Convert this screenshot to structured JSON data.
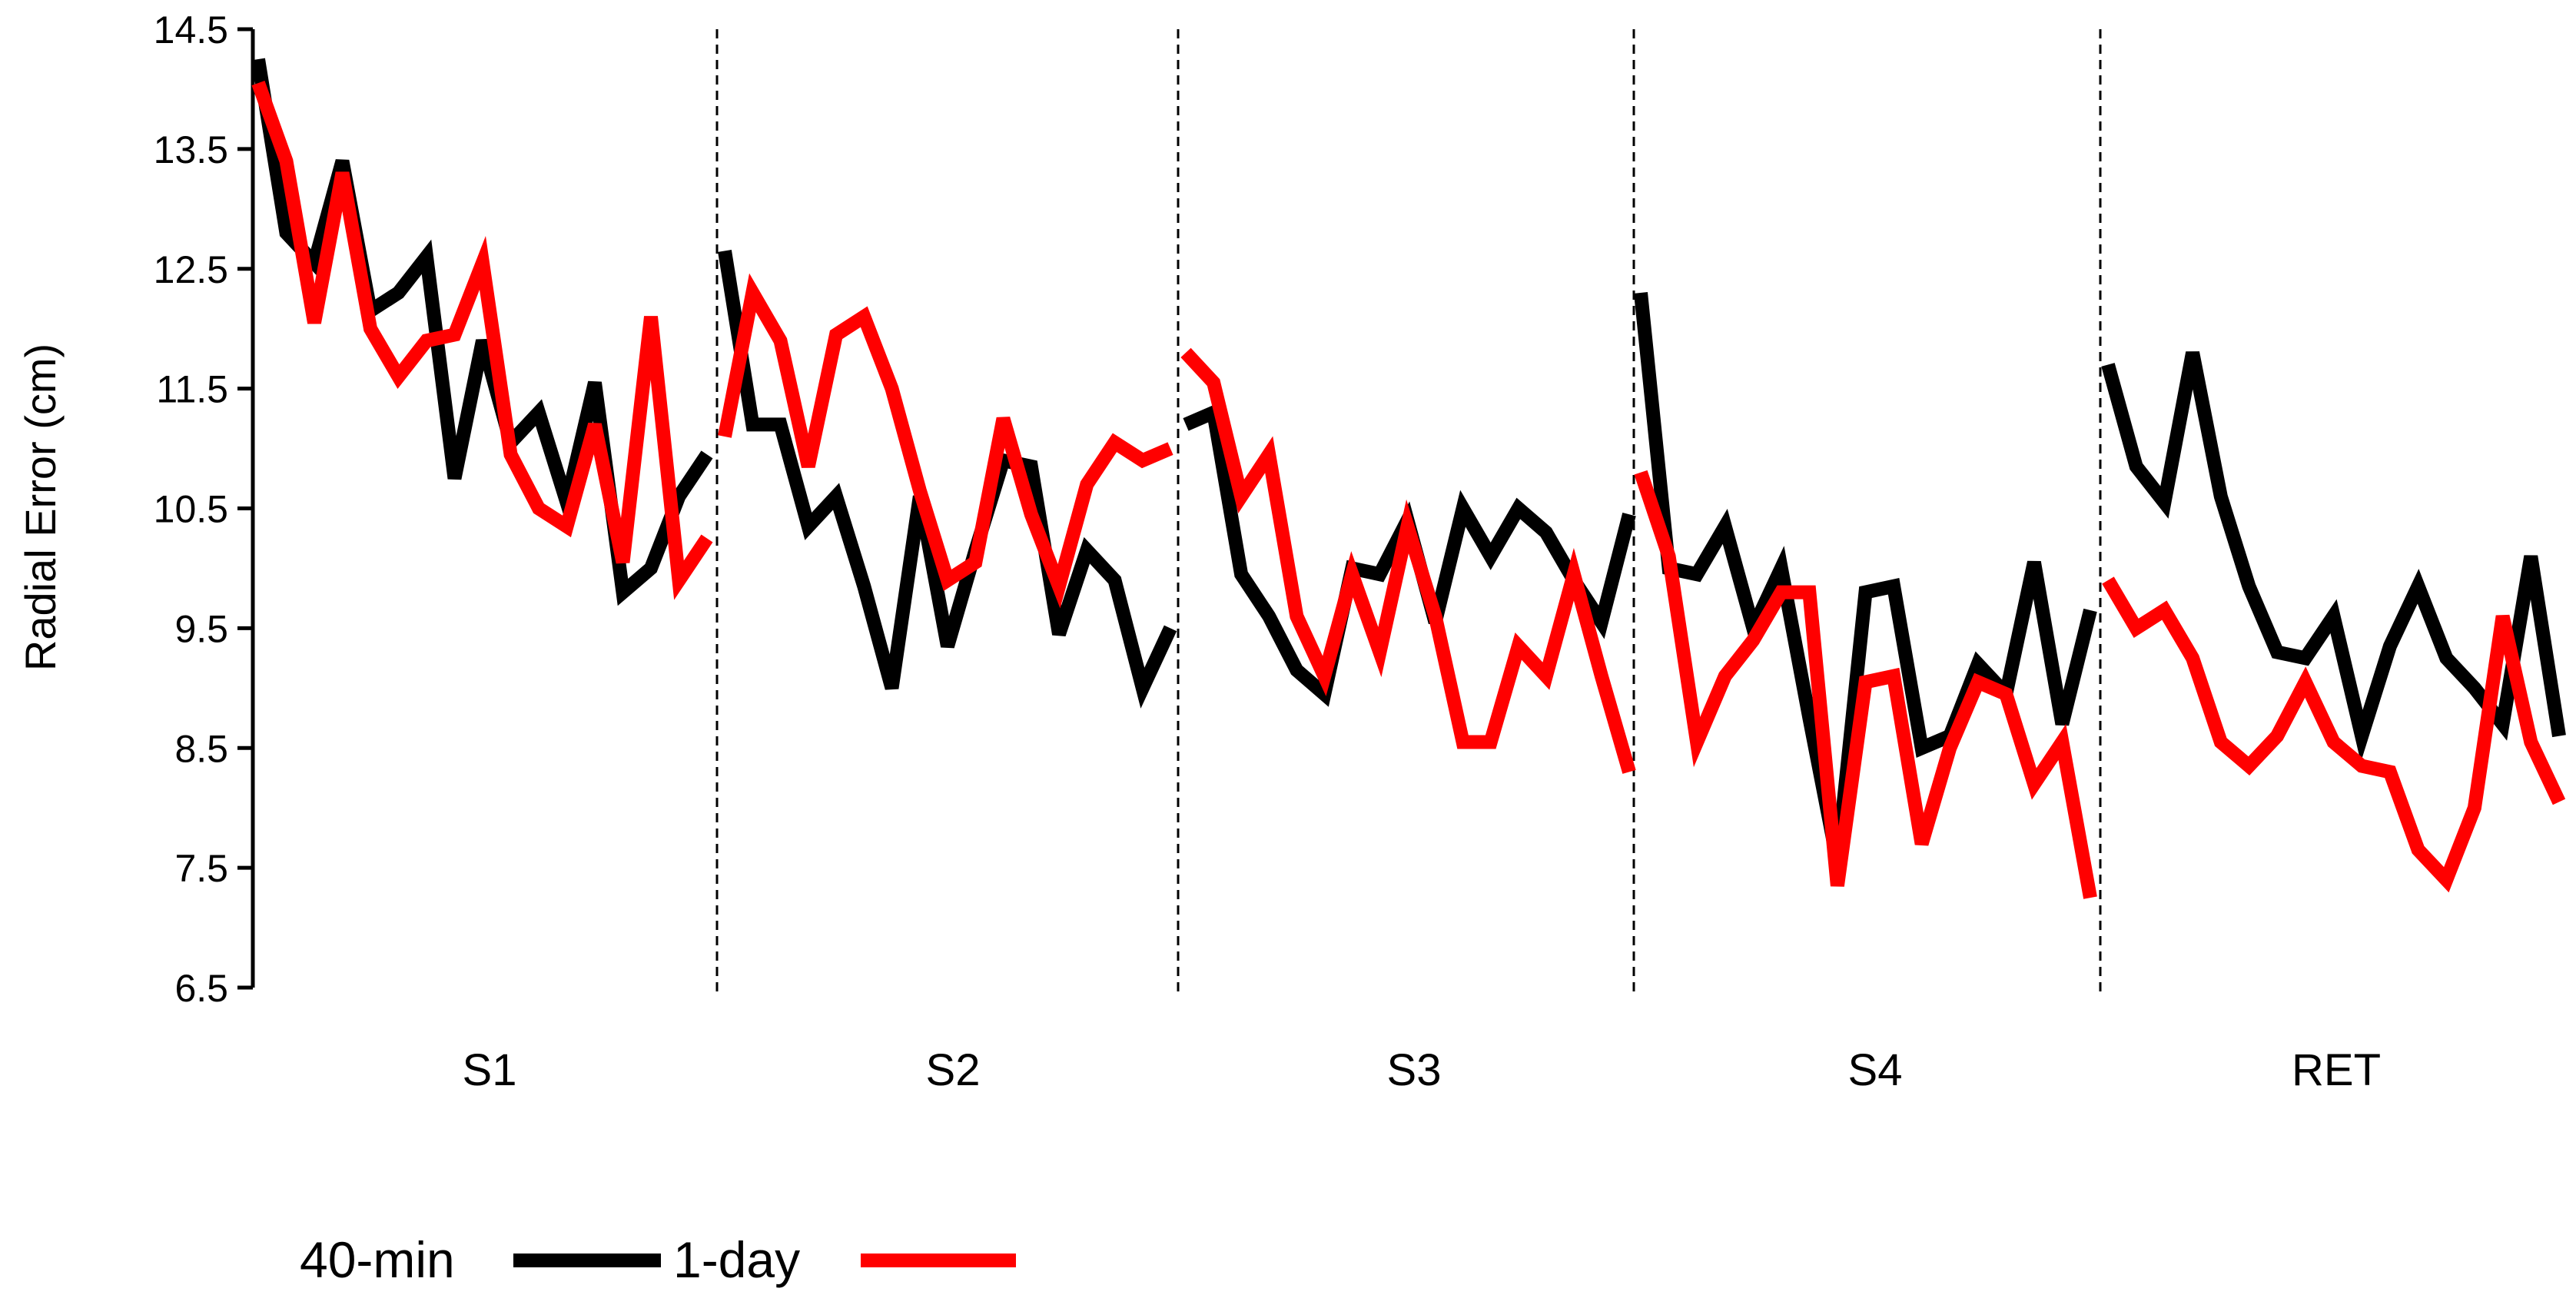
{
  "chart_data": {
    "type": "line",
    "ylabel": "Radial Error (cm)",
    "ylim": [
      6.5,
      14.5
    ],
    "yticks": [
      "14.5",
      "13.5",
      "12.5",
      "11.5",
      "10.5",
      "9.5",
      "8.5",
      "7.5",
      "6.5"
    ],
    "grid": false,
    "legend_position": "bottom-left",
    "sessions": [
      "S1",
      "S2",
      "S3",
      "S4",
      "RET"
    ],
    "series": [
      {
        "name": "40-min",
        "color": "#000000",
        "sessions": [
          [
            14.25,
            12.8,
            12.55,
            13.4,
            12.15,
            12.3,
            12.6,
            10.75,
            11.9,
            11.05,
            11.3,
            10.55,
            11.55,
            9.8,
            10.0,
            10.6,
            10.95
          ],
          [
            12.65,
            11.2,
            11.2,
            10.35,
            10.6,
            9.85,
            9.0,
            10.6,
            9.35,
            10.15,
            10.9,
            10.85,
            9.45,
            10.15,
            9.9,
            9.0,
            9.5
          ],
          [
            11.2,
            11.3,
            9.95,
            9.6,
            9.15,
            8.95,
            10.0,
            9.95,
            10.4,
            9.55,
            10.5,
            10.1,
            10.5,
            10.3,
            9.9,
            9.55,
            10.45
          ],
          [
            12.3,
            10.0,
            9.95,
            10.35,
            9.5,
            10.0,
            8.75,
            7.55,
            9.8,
            9.85,
            8.5,
            8.6,
            9.2,
            8.95,
            10.05,
            8.7,
            9.65
          ],
          [
            11.7,
            10.85,
            10.55,
            11.8,
            10.6,
            9.85,
            9.3,
            9.25,
            9.6,
            8.6,
            9.35,
            9.85,
            9.25,
            9.0,
            8.7,
            10.1,
            8.6
          ]
        ]
      },
      {
        "name": "1-day",
        "color": "#ff0000",
        "sessions": [
          [
            14.05,
            13.4,
            12.05,
            13.3,
            12.0,
            11.6,
            11.9,
            11.95,
            12.55,
            10.95,
            10.5,
            10.35,
            11.2,
            10.05,
            12.1,
            9.9,
            10.25
          ],
          [
            11.1,
            12.3,
            11.9,
            10.85,
            11.95,
            12.1,
            11.5,
            10.65,
            9.9,
            10.05,
            11.25,
            10.45,
            9.85,
            10.7,
            11.05,
            10.9,
            11.0
          ],
          [
            11.8,
            11.55,
            10.6,
            10.95,
            9.6,
            9.1,
            9.95,
            9.3,
            10.35,
            9.6,
            8.55,
            8.55,
            9.35,
            9.1,
            9.95,
            9.1,
            8.3
          ],
          [
            10.8,
            10.1,
            8.55,
            9.1,
            9.4,
            9.8,
            9.8,
            7.35,
            9.05,
            9.1,
            7.7,
            8.5,
            9.05,
            8.95,
            8.2,
            8.55,
            7.25
          ],
          [
            9.9,
            9.5,
            9.65,
            9.25,
            8.55,
            8.35,
            8.6,
            9.05,
            8.55,
            8.35,
            8.3,
            7.65,
            7.4,
            8.0,
            9.6,
            8.55,
            8.05
          ]
        ]
      }
    ]
  }
}
